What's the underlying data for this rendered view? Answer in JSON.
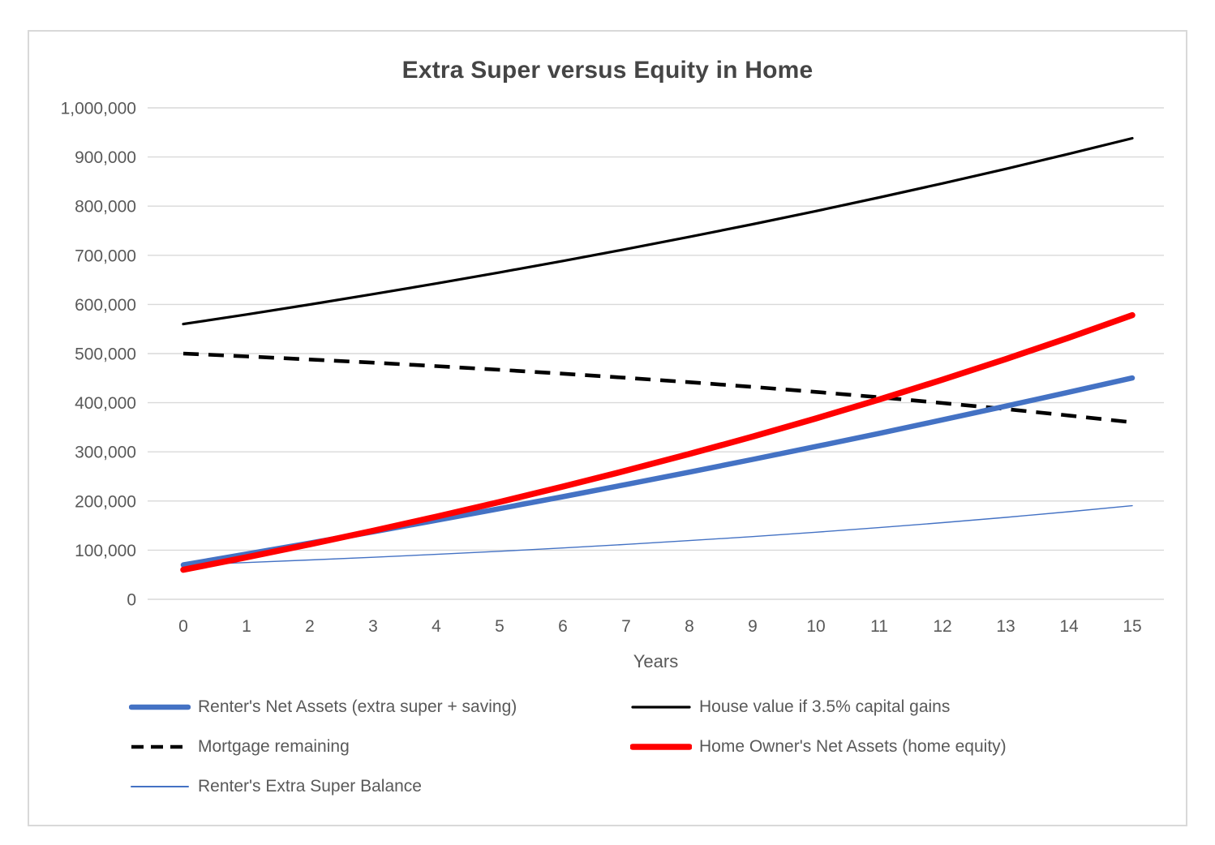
{
  "page": {
    "background_color": "#ffffff",
    "frame_border_color": "#d9d9d9"
  },
  "chart_data": {
    "type": "line",
    "title": "Extra Super versus Equity in Home",
    "xlabel": "Years",
    "ylabel": "",
    "x": [
      0,
      1,
      2,
      3,
      4,
      5,
      6,
      7,
      8,
      9,
      10,
      11,
      12,
      13,
      14,
      15
    ],
    "ylim": [
      0,
      1000000
    ],
    "yticks": [
      0,
      100000,
      200000,
      300000,
      400000,
      500000,
      600000,
      700000,
      800000,
      900000,
      1000000
    ],
    "ytick_labels": [
      "0",
      "100,000",
      "200,000",
      "300,000",
      "400,000",
      "500,000",
      "600,000",
      "700,000",
      "800,000",
      "900,000",
      "1,000,000"
    ],
    "grid": true,
    "grid_color": "#d9d9d9",
    "tick_color": "#595959",
    "title_color": "#454545",
    "legend_position": "bottom",
    "series": [
      {
        "id": "renters-net-assets",
        "name": "Renter's Net Assets (extra super + saving)",
        "color": "#4472C4",
        "width": 6.5,
        "dash": "none",
        "values": [
          70000,
          92000,
          114400,
          137300,
          160700,
          184500,
          208800,
          233600,
          258800,
          284600,
          310900,
          337700,
          365100,
          393000,
          421400,
          450400
        ]
      },
      {
        "id": "house-value",
        "name": "House value if 3.5% capital gains",
        "color": "#000000",
        "width": 3.2,
        "dash": "none",
        "values": [
          560000,
          579600,
          599900,
          620900,
          642600,
          665100,
          688400,
          712500,
          737400,
          763200,
          789900,
          817600,
          846200,
          875800,
          906500,
          938200
        ]
      },
      {
        "id": "mortgage-remaining",
        "name": "Mortgage remaining",
        "color": "#000000",
        "width": 4.6,
        "dash": "dashed",
        "values": [
          500000,
          494200,
          488000,
          481500,
          474500,
          467000,
          459100,
          450700,
          441700,
          432100,
          421900,
          411000,
          399400,
          387100,
          374000,
          360000
        ]
      },
      {
        "id": "home-owners-net-assets",
        "name": "Home Owner's Net Assets (home equity)",
        "color": "#FF0000",
        "width": 7.5,
        "dash": "none",
        "values": [
          60000,
          85400,
          111900,
          139400,
          168100,
          198100,
          229300,
          261800,
          295700,
          331100,
          368000,
          406600,
          446800,
          488700,
          532500,
          578200
        ]
      },
      {
        "id": "renters-extra-super-balance",
        "name": "Renter's Extra Super Balance",
        "color": "#4472C4",
        "width": 1.4,
        "dash": "none",
        "values": [
          70000,
          74800,
          80000,
          85500,
          91400,
          97700,
          104500,
          111700,
          119400,
          127600,
          136400,
          145800,
          155900,
          166700,
          178200,
          190400
        ]
      }
    ]
  }
}
